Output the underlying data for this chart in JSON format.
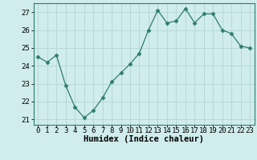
{
  "x": [
    0,
    1,
    2,
    3,
    4,
    5,
    6,
    7,
    8,
    9,
    10,
    11,
    12,
    13,
    14,
    15,
    16,
    17,
    18,
    19,
    20,
    21,
    22,
    23
  ],
  "y": [
    24.5,
    24.2,
    24.6,
    22.9,
    21.7,
    21.1,
    21.5,
    22.2,
    23.1,
    23.6,
    24.1,
    24.7,
    26.0,
    27.1,
    26.4,
    26.5,
    27.2,
    26.4,
    26.9,
    26.9,
    26.0,
    25.8,
    25.1,
    25.0
  ],
  "line_color": "#2e7d6e",
  "marker": "D",
  "marker_size": 2.5,
  "background_color": "#d0ecec",
  "grid_color": "#b8d8d8",
  "xlabel": "Humidex (Indice chaleur)",
  "xlim": [
    -0.5,
    23.5
  ],
  "ylim": [
    20.7,
    27.5
  ],
  "yticks": [
    21,
    22,
    23,
    24,
    25,
    26,
    27
  ],
  "xticks": [
    0,
    1,
    2,
    3,
    4,
    5,
    6,
    7,
    8,
    9,
    10,
    11,
    12,
    13,
    14,
    15,
    16,
    17,
    18,
    19,
    20,
    21,
    22,
    23
  ],
  "xlabel_fontsize": 7.5,
  "tick_fontsize": 6.5
}
